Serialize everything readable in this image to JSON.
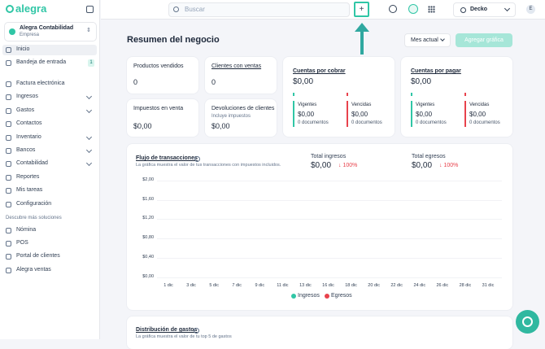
{
  "sidebar": {
    "logo": "alegra",
    "company": {
      "name": "Alegra Contabilidad",
      "role": "Empresa"
    },
    "nav": [
      {
        "label": "Inicio",
        "active": true
      },
      {
        "label": "Bandeja de entrada",
        "badge": "1"
      },
      {
        "label": "Factura electrónica"
      },
      {
        "label": "Ingresos",
        "expandable": true
      },
      {
        "label": "Gastos",
        "expandable": true
      },
      {
        "label": "Contactos"
      },
      {
        "label": "Inventario",
        "expandable": true
      },
      {
        "label": "Bancos",
        "expandable": true
      },
      {
        "label": "Contabilidad",
        "expandable": true
      },
      {
        "label": "Reportes"
      },
      {
        "label": "Mis tareas"
      },
      {
        "label": "Configuración"
      }
    ],
    "section": "Descubre más soluciones",
    "more": [
      {
        "label": "Nómina"
      },
      {
        "label": "POS"
      },
      {
        "label": "Portal de clientes"
      },
      {
        "label": "Alegra ventas"
      }
    ]
  },
  "topbar": {
    "search_placeholder": "Buscar",
    "add": "+",
    "user": "Decko",
    "avatar": "E"
  },
  "header": {
    "title": "Resumen del negocio",
    "period": "Mes actual",
    "add_chart": "Agregar gráfica"
  },
  "cards": [
    {
      "label": "Productos vendidos",
      "value": "0"
    },
    {
      "label": "Clientes con ventas",
      "value": "0"
    },
    {
      "label": "Impuestos en venta",
      "value": "$0,00"
    },
    {
      "label": "Devoluciones de clientes",
      "note": "Incluye impuestos",
      "value": "$0,00"
    }
  ],
  "accounts": [
    {
      "title": "Cuentas por cobrar",
      "total": "$0,00",
      "current": {
        "label": "Vigentes",
        "amount": "$0,00",
        "docs": "0 documentos"
      },
      "overdue": {
        "label": "Vencidas",
        "amount": "$0,00",
        "docs": "0 documentos"
      }
    },
    {
      "title": "Cuentas por pagar",
      "total": "$0,00",
      "current": {
        "label": "Vigentes",
        "amount": "$0,00",
        "docs": "0 documentos"
      },
      "overdue": {
        "label": "Vencidas",
        "amount": "$0,00",
        "docs": "0 documentos"
      }
    }
  ],
  "cash_flow": {
    "title": "Flujo de transacciones",
    "subtitle": "La gráfica muestra el valor de tus transacciones con impuestos incluidos.",
    "totals": [
      {
        "label": "Total ingresos",
        "value": "$0,00",
        "change": "↓ 100%"
      },
      {
        "label": "Total egresos",
        "value": "$0,00",
        "change": "↓ 100%"
      }
    ],
    "y_labels": [
      "$2,00",
      "$1,60",
      "$1,20",
      "$0,80",
      "$0,40",
      "$0,00"
    ],
    "x_labels": [
      "1 dic",
      "3 dic",
      "5 dic",
      "7 dic",
      "9 dic",
      "11 dic",
      "13 dic",
      "16 dic",
      "18 dic",
      "20 dic",
      "22 dic",
      "24 dic",
      "26 dic",
      "28 dic",
      "31 dic"
    ],
    "legend": [
      {
        "label": "Ingresos",
        "color": "#30c6a6"
      },
      {
        "label": "Egresos",
        "color": "#e8424c"
      }
    ]
  },
  "expenses": {
    "title": "Distribución de gastos",
    "subtitle": "La gráfica muestra el valor de tu top 5 de gastos"
  }
}
